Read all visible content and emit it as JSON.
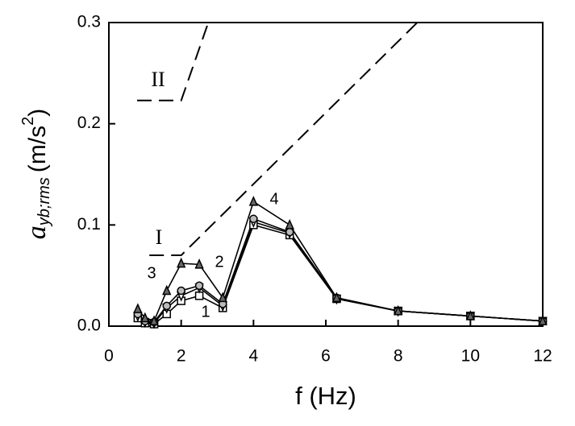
{
  "chart_data": {
    "type": "line",
    "xlabel": "f (Hz)",
    "ylabel": {
      "symbol": "a",
      "subscript": "yb;rms",
      "unit": "(m/s",
      "unit_sup": "2",
      "unit_end": ")"
    },
    "xlim": [
      0,
      12
    ],
    "xticks": [
      0,
      2,
      4,
      6,
      8,
      10,
      12
    ],
    "ylim": [
      0,
      0.3
    ],
    "yticks": [
      {
        "value": 0,
        "label": "0.0"
      },
      0.1,
      0.2,
      0.3
    ],
    "series": [
      {
        "name": "1",
        "color": "#000000",
        "marker": "square",
        "x": [
          0.8,
          1.0,
          1.25,
          1.6,
          2.0,
          2.5,
          3.15,
          4.0,
          5.0,
          6.3,
          8.0,
          10,
          12
        ],
        "values": [
          0.008,
          0.003,
          0.002,
          0.012,
          0.025,
          0.03,
          0.018,
          0.1,
          0.09,
          0.027,
          0.015,
          0.01,
          0.005
        ]
      },
      {
        "name": "2",
        "color": "#000000",
        "marker": "triangle-down",
        "x": [
          0.8,
          1.0,
          1.25,
          1.6,
          2.0,
          2.5,
          3.15,
          4.0,
          5.0,
          6.3,
          8.0,
          10,
          12
        ],
        "values": [
          0.01,
          0.004,
          0.003,
          0.018,
          0.03,
          0.038,
          0.02,
          0.103,
          0.092,
          0.027,
          0.015,
          0.01,
          0.005
        ]
      },
      {
        "name": "3",
        "color": "#000000",
        "marker": "circle",
        "x": [
          0.8,
          1.0,
          1.25,
          1.6,
          2.0,
          2.5,
          3.15,
          4.0,
          5.0,
          6.3,
          8.0,
          10,
          12
        ],
        "values": [
          0.012,
          0.005,
          0.004,
          0.02,
          0.035,
          0.04,
          0.022,
          0.106,
          0.093,
          0.028,
          0.015,
          0.01,
          0.005
        ]
      },
      {
        "name": "4",
        "color": "#000000",
        "marker": "triangle-up",
        "x": [
          0.8,
          1.0,
          1.25,
          1.6,
          2.0,
          2.5,
          3.15,
          4.0,
          5.0,
          6.3,
          8.0,
          10,
          12
        ],
        "values": [
          0.017,
          0.008,
          0.005,
          0.035,
          0.062,
          0.061,
          0.028,
          0.123,
          0.1,
          0.028,
          0.015,
          0.01,
          0.005
        ]
      }
    ],
    "limits": [
      {
        "name": "I",
        "x": [
          1.12,
          2.0,
          8.53
        ],
        "values": [
          0.07,
          0.07,
          0.3
        ]
      },
      {
        "name": "II",
        "x": [
          0.78,
          2.0,
          2.75
        ],
        "values": [
          0.223,
          0.223,
          0.3
        ]
      }
    ]
  }
}
